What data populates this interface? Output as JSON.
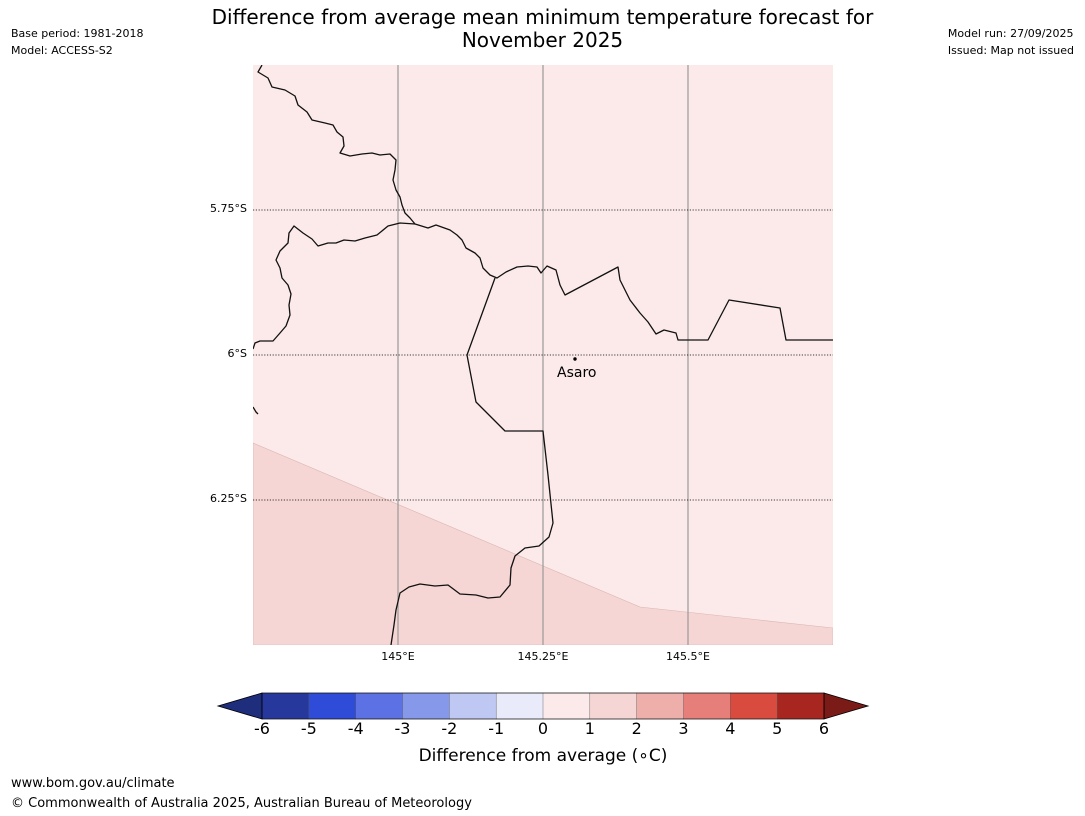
{
  "header": {
    "title_line1": "Difference from average mean minimum temperature forecast for",
    "title_line2": "November 2025",
    "base_period": "Base period: 1981-2018",
    "model": "Model: ACCESS-S2",
    "model_run": "Model run: 27/09/2025",
    "issued": "Issued: Map not issued"
  },
  "map": {
    "lat_labels": [
      "5.75°S",
      "6°S",
      "6.25°S"
    ],
    "lon_labels": [
      "145°E",
      "145.25°E",
      "145.5°E"
    ],
    "place": {
      "name": "Asaro",
      "lon": 145.3,
      "lat": -6.01
    },
    "zones": [
      {
        "category": "0 to 1",
        "color": "#fbeae9"
      },
      {
        "category": "1 to 2",
        "color": "#f5d6d4"
      }
    ]
  },
  "colorbar": {
    "title": "Difference from average (∘C)",
    "ticks": [
      "-6",
      "-5",
      "-4",
      "-3",
      "-2",
      "-1",
      "0",
      "1",
      "2",
      "3",
      "4",
      "5",
      "6"
    ],
    "colors": [
      "#27389d",
      "#2e4cd8",
      "#5b71e4",
      "#8598ea",
      "#bfc8f2",
      "#e9ebfb",
      "#fbeae9",
      "#f5d6d4",
      "#eeaea9",
      "#e67f79",
      "#da4b3f",
      "#a82620"
    ],
    "under_color": "#1e2e7c",
    "over_color": "#7a1b17"
  },
  "footer": {
    "url": "www.bom.gov.au/climate",
    "copyright": "© Commonwealth of Australia 2025, Australian Bureau of Meteorology"
  }
}
